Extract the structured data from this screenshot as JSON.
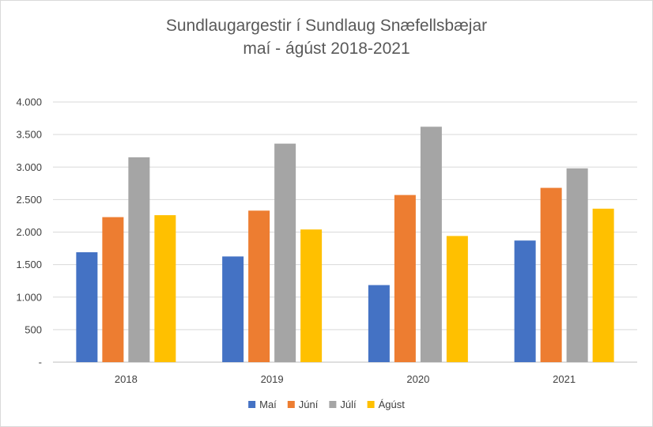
{
  "chart_data": {
    "type": "bar",
    "title": [
      "Sundlaugargestir í Sundlaug Snæfellsbæjar",
      "maí - ágúst 2018-2021"
    ],
    "categories": [
      "2018",
      "2019",
      "2020",
      "2021"
    ],
    "series": [
      {
        "name": "Maí",
        "color": "#4472C4",
        "values": [
          1690,
          1625,
          1185,
          1870
        ]
      },
      {
        "name": "Júní",
        "color": "#ED7D31",
        "values": [
          2230,
          2330,
          2570,
          2680
        ]
      },
      {
        "name": "Júlí",
        "color": "#A5A5A5",
        "values": [
          3150,
          3360,
          3620,
          2980
        ]
      },
      {
        "name": "Ágúst",
        "color": "#FFC000",
        "values": [
          2260,
          2040,
          1940,
          2360
        ]
      }
    ],
    "ylim": [
      0,
      4000
    ],
    "ytick_values": [
      0,
      500,
      1000,
      1500,
      2000,
      2500,
      3000,
      3500,
      4000
    ],
    "ytick_labels": [
      "-",
      "500",
      "1.000",
      "1.500",
      "2.000",
      "2.500",
      "3.000",
      "3.500",
      "4.000"
    ],
    "xlabel": "",
    "ylabel": "",
    "grid": true,
    "legend_position": "bottom-center"
  }
}
